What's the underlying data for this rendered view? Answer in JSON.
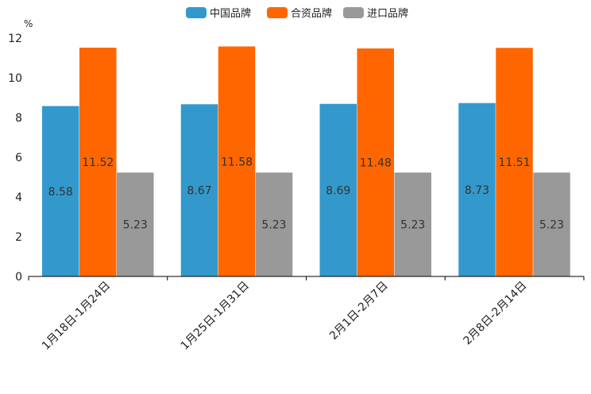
{
  "chart_data": {
    "type": "bar",
    "title": "",
    "xlabel": "",
    "ylabel": "%",
    "ylim": [
      0,
      12
    ],
    "yticks": [
      0,
      2,
      4,
      6,
      8,
      10,
      12
    ],
    "grid": false,
    "legend_position": "top-center",
    "categories": [
      "1月18日-1月24日",
      "1月25日-1月31日",
      "2月1日-2月7日",
      "2月8日-2月14日"
    ],
    "series": [
      {
        "name": "中国品牌",
        "color": "#3399CC",
        "values": [
          8.58,
          8.67,
          8.69,
          8.73
        ]
      },
      {
        "name": "合资品牌",
        "color": "#FF6600",
        "values": [
          11.52,
          11.58,
          11.48,
          11.51
        ]
      },
      {
        "name": "进口品牌",
        "color": "#999999",
        "values": [
          5.23,
          5.23,
          5.23,
          5.23
        ]
      }
    ]
  }
}
